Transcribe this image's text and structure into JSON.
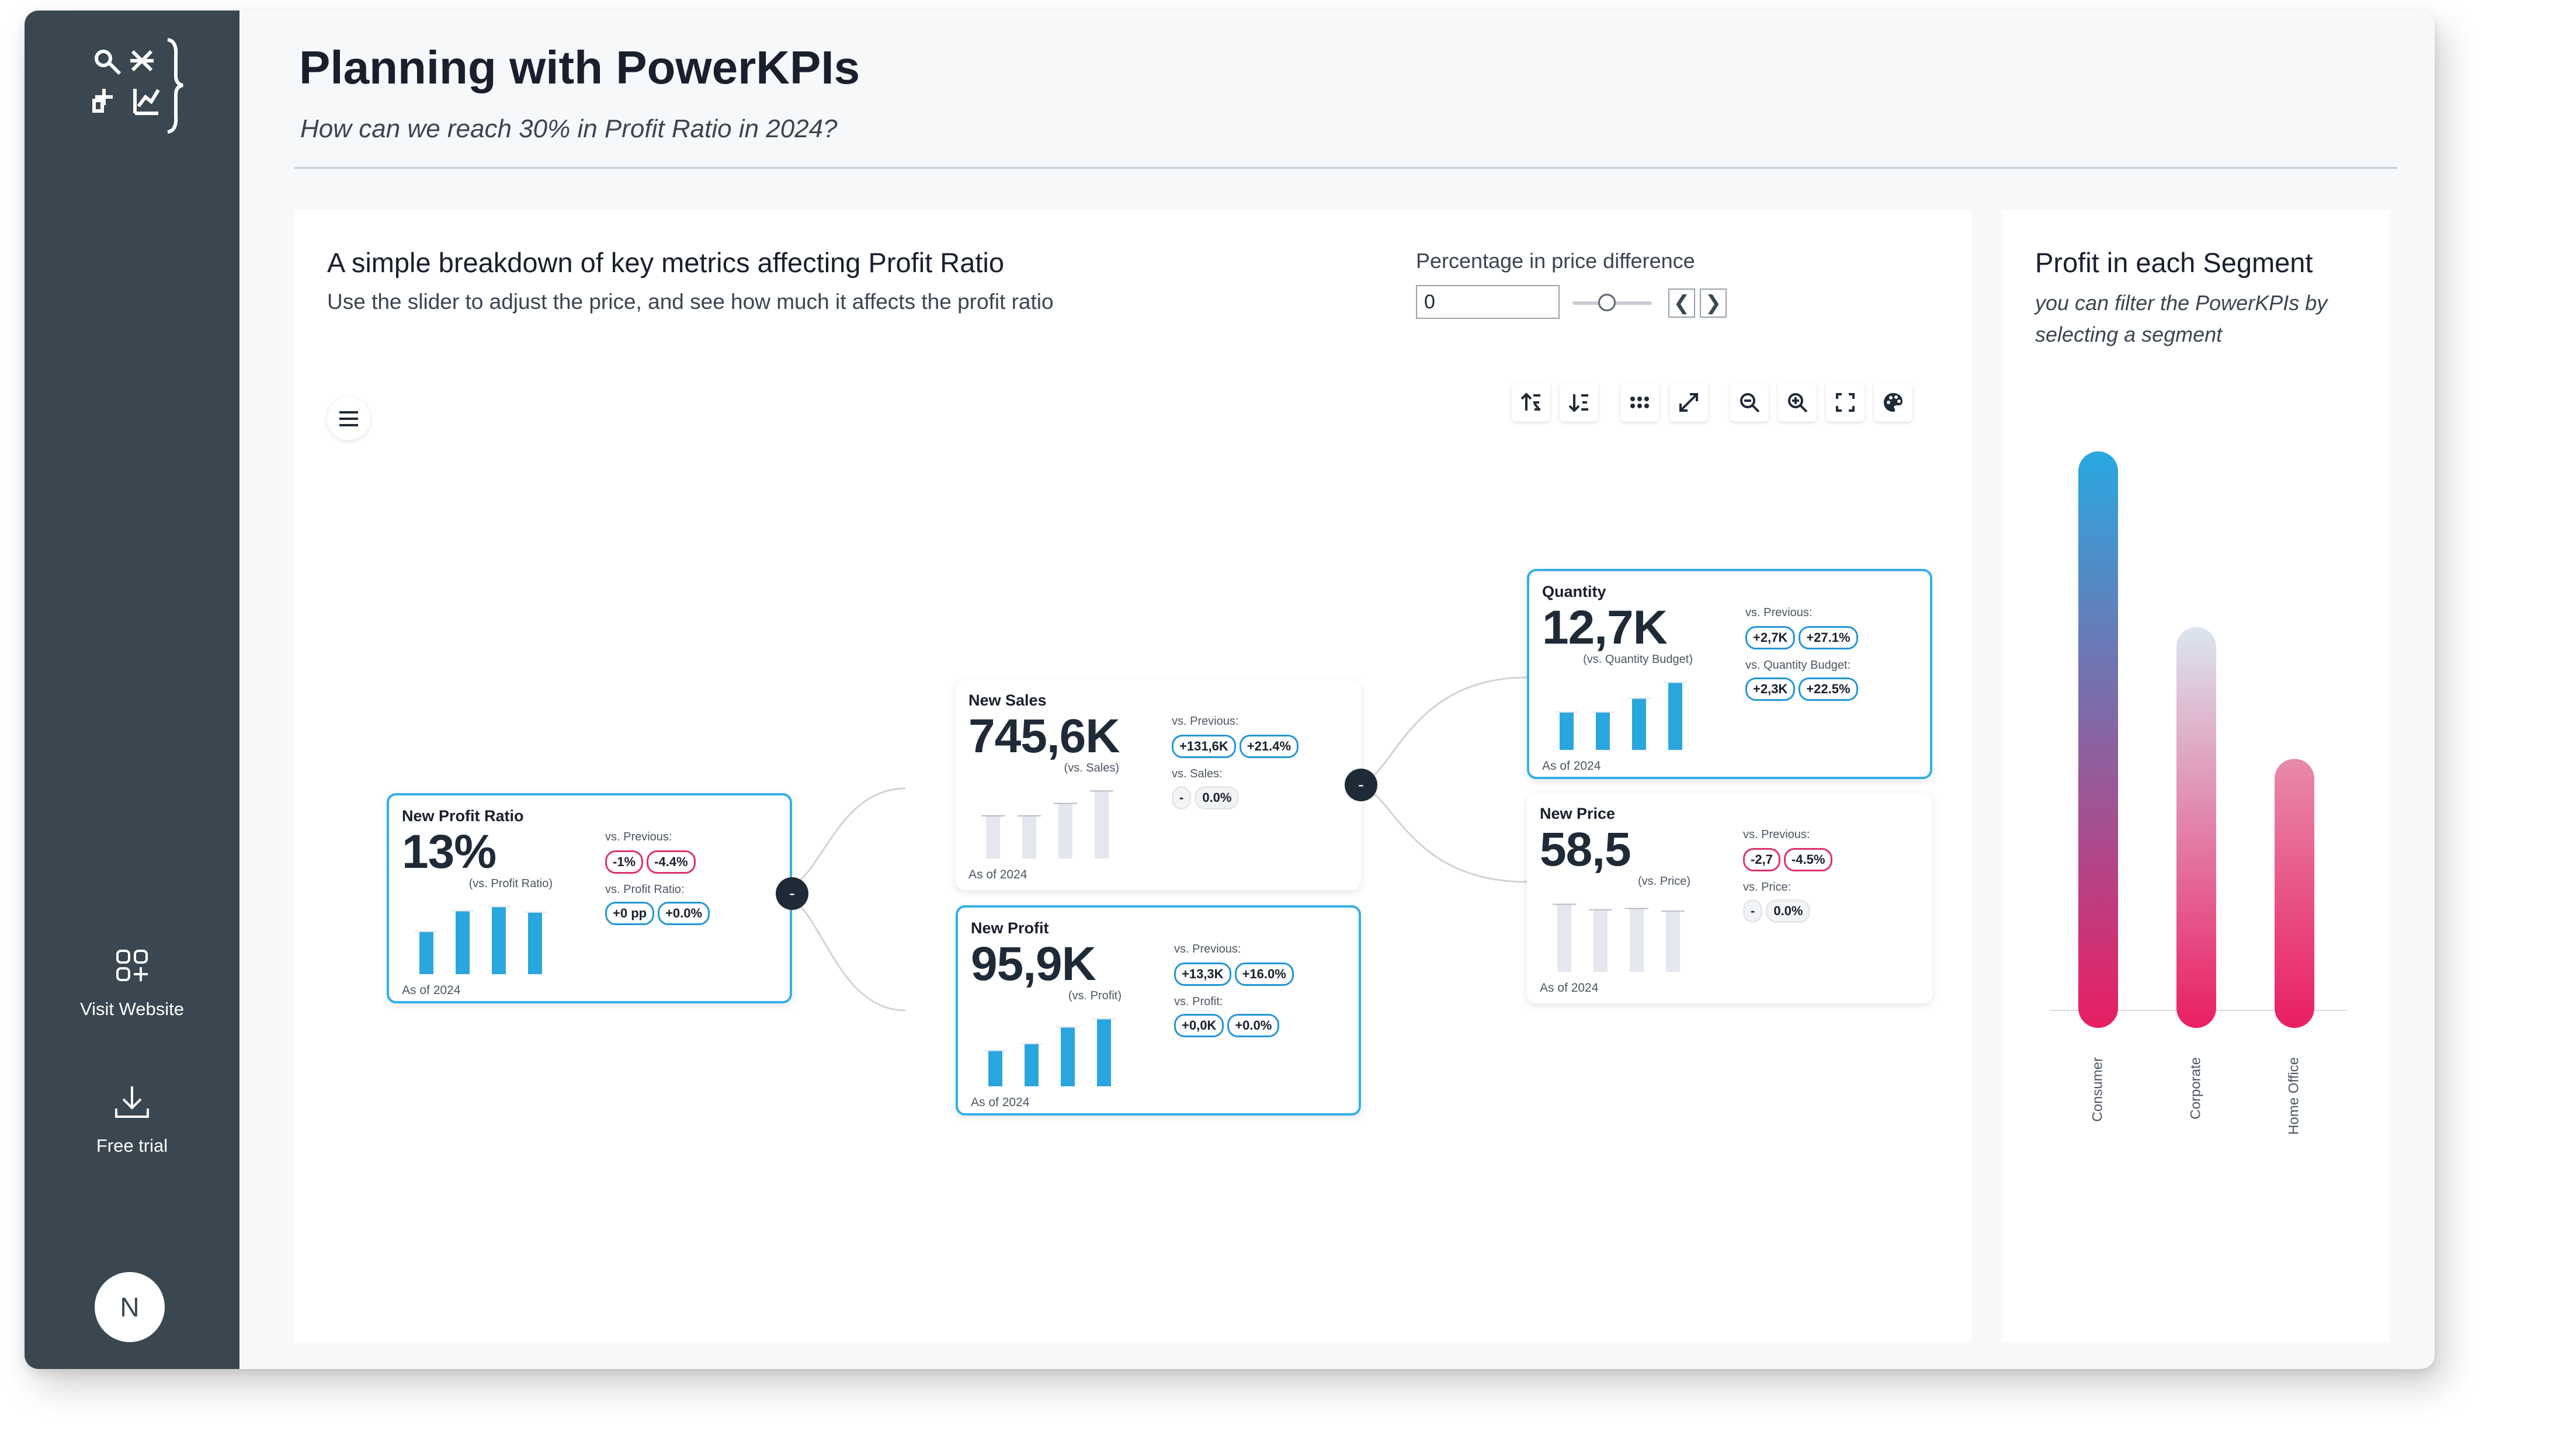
{
  "header": {
    "title": "Planning with PowerKPIs",
    "subtitle": "How can we reach 30% in Profit Ratio in 2024?"
  },
  "sidebar": {
    "logo_icon": "powerkpis-logo-icon",
    "links": [
      {
        "label": "Visit Website",
        "icon": "apps-add-icon"
      },
      {
        "label": "Free trial",
        "icon": "download-icon"
      }
    ],
    "avatar_initial": "N"
  },
  "main_panel": {
    "title": "A simple breakdown of key metrics affecting Profit Ratio",
    "subtitle": "Use the slider to adjust the price, and see how much it affects the profit ratio",
    "slider": {
      "label": "Percentage in price difference",
      "value": "0",
      "prev_glyph": "❮",
      "next_glyph": "❯"
    },
    "toolbar": [
      "sort-ascending-icon",
      "sort-descending-icon",
      "dots-grid-icon",
      "expand-arrows-icon",
      "zoom-out-icon",
      "zoom-in-icon",
      "fullscreen-icon",
      "palette-icon"
    ],
    "node_toggle_glyph": "-"
  },
  "kpis": {
    "profit_ratio": {
      "name": "New Profit Ratio",
      "value": "13%",
      "vs_label": "(vs. Profit Ratio)",
      "as_of": "As of 2024",
      "cmp1_label": "vs. Previous:",
      "cmp1": [
        "-1%",
        "-4.4%"
      ],
      "cmp1_tone": [
        "neg",
        "neg"
      ],
      "cmp2_label": "vs. Profit Ratio:",
      "cmp2": [
        "+0 pp",
        "+0.0%"
      ],
      "cmp2_tone": [
        "pos",
        "pos"
      ],
      "bars": [
        0.62,
        0.92,
        0.98,
        0.9
      ],
      "bar_tone": "blue"
    },
    "sales": {
      "name": "New Sales",
      "value": "745,6K",
      "vs_label": "(vs. Sales)",
      "as_of": "As of 2024",
      "cmp1_label": "vs. Previous:",
      "cmp1": [
        "+131,6K",
        "+21.4%"
      ],
      "cmp1_tone": [
        "pos",
        "pos"
      ],
      "cmp2_label": "vs. Sales:",
      "cmp2": [
        "-",
        "0.0%"
      ],
      "cmp2_tone": [
        "neutral",
        "neutral"
      ],
      "bars": [
        0.62,
        0.62,
        0.8,
        0.98
      ],
      "bar_tone": "grey"
    },
    "profit": {
      "name": "New Profit",
      "value": "95,9K",
      "vs_label": "(vs. Profit)",
      "as_of": "As of 2024",
      "cmp1_label": "vs. Previous:",
      "cmp1": [
        "+13,3K",
        "+16.0%"
      ],
      "cmp1_tone": [
        "pos",
        "pos"
      ],
      "cmp2_label": "vs. Profit:",
      "cmp2": [
        "+0,0K",
        "+0.0%"
      ],
      "cmp2_tone": [
        "pos",
        "pos"
      ],
      "bars": [
        0.52,
        0.62,
        0.86,
        0.98
      ],
      "bar_tone": "blue"
    },
    "quantity": {
      "name": "Quantity",
      "value": "12,7K",
      "vs_label": "(vs. Quantity Budget)",
      "as_of": "As of 2024",
      "cmp1_label": "vs. Previous:",
      "cmp1": [
        "+2,7K",
        "+27.1%"
      ],
      "cmp1_tone": [
        "pos",
        "pos"
      ],
      "cmp2_label": "vs. Quantity Budget:",
      "cmp2": [
        "+2,3K",
        "+22.5%"
      ],
      "cmp2_tone": [
        "pos",
        "pos"
      ],
      "bars": [
        0.55,
        0.55,
        0.75,
        0.98
      ],
      "bar_tone": "blue"
    },
    "price": {
      "name": "New Price",
      "value": "58,5",
      "vs_label": "(vs. Price)",
      "as_of": "As of 2024",
      "cmp1_label": "vs. Previous:",
      "cmp1": [
        "-2,7",
        "-4.5%"
      ],
      "cmp1_tone": [
        "neg",
        "neg"
      ],
      "cmp2_label": "vs. Price:",
      "cmp2": [
        "-",
        "0.0%"
      ],
      "cmp2_tone": [
        "neutral",
        "neutral"
      ],
      "bars": [
        0.98,
        0.9,
        0.92,
        0.88
      ],
      "bar_tone": "grey"
    }
  },
  "right_panel": {
    "title": "Profit in each Segment",
    "subtitle": "you can filter the PowerKPIs by selecting a segment"
  },
  "chart_data": {
    "type": "bar",
    "title": "Profit in each Segment",
    "categories": [
      "Consumer",
      "Corporate",
      "Home Office"
    ],
    "values": [
      134000,
      91900,
      60300
    ],
    "ylim": [
      0,
      140000
    ],
    "grid": false,
    "legend": "none",
    "colors": {
      "top_consumer": "#29a8e0",
      "top_corporate": "#dbe6f0",
      "top_home_office": "#e88aab",
      "bottom": "#e91e63"
    }
  },
  "colors": {
    "sidebar": "#3a4750",
    "accent_blue": "#2aa6df",
    "accent_pink": "#e91e63",
    "bar_grey": "#e5e7ef",
    "selected_border": "#33b0e6"
  }
}
